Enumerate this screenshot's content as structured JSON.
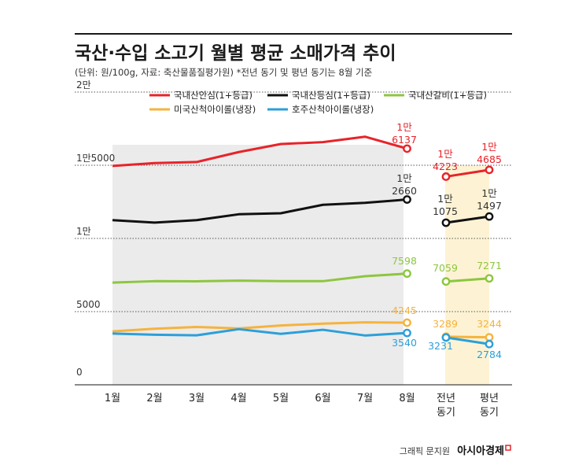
{
  "header": {
    "title": "국산·수입 소고기 월별 평균 소매가격 추이",
    "subtitle": "(단위: 원/100g, 자료: 축산물품질평가원) *전년 동기 및 평년 동기는 8월 기준"
  },
  "footer": {
    "credit": "그래픽 문지원",
    "brand": "아시아경제"
  },
  "chart_data": {
    "type": "line",
    "title": "국산·수입 소고기 월별 평균 소매가격 추이",
    "ylim": [
      0,
      20000
    ],
    "yticks": [
      {
        "value": 0,
        "label": "0"
      },
      {
        "value": 5000,
        "label": "5000"
      },
      {
        "value": 10000,
        "label": "1만"
      },
      {
        "value": 15000,
        "label": "1만5000"
      },
      {
        "value": 20000,
        "label": "2만"
      }
    ],
    "categories": [
      "1월",
      "2월",
      "3월",
      "4월",
      "5월",
      "6월",
      "7월",
      "8월"
    ],
    "compare_categories": [
      [
        "전년",
        "동기"
      ],
      [
        "평년",
        "동기"
      ]
    ],
    "series": [
      {
        "name": "국내산안심(1+등급)",
        "color": "#e8232a",
        "values": [
          14950,
          15150,
          15220,
          15900,
          16450,
          16580,
          16950,
          16137
        ],
        "compare": [
          14223,
          14685
        ],
        "end_label": [
          "1만",
          "6137"
        ],
        "compare_labels": [
          [
            "1만",
            "4223"
          ],
          [
            "1만",
            "4685"
          ]
        ]
      },
      {
        "name": "국내산등심(1+등급)",
        "color": "#111111",
        "values": [
          11250,
          11080,
          11250,
          11650,
          11720,
          12300,
          12430,
          12660
        ],
        "compare": [
          11075,
          11497
        ],
        "end_label": [
          "1만",
          "2660"
        ],
        "compare_labels": [
          [
            "1만",
            "1075"
          ],
          [
            "1만",
            "1497"
          ]
        ]
      },
      {
        "name": "국내산갈비(1+등급)",
        "color": "#8dc63f",
        "values": [
          6980,
          7080,
          7070,
          7120,
          7080,
          7080,
          7420,
          7598
        ],
        "compare": [
          7059,
          7271
        ],
        "end_label": [
          "7598"
        ],
        "compare_labels": [
          [
            "7059"
          ],
          [
            "7271"
          ]
        ]
      },
      {
        "name": "미국산척아이롤(냉장)",
        "color": "#f5b33e",
        "values": [
          3650,
          3830,
          3950,
          3850,
          4050,
          4180,
          4270,
          4245
        ],
        "compare": [
          3289,
          3244
        ],
        "end_label": [
          "4245"
        ],
        "compare_labels": [
          [
            "3289"
          ],
          [
            "3244"
          ]
        ]
      },
      {
        "name": "호주산척아이롤(냉장)",
        "color": "#2c9fd9",
        "values": [
          3500,
          3420,
          3380,
          3800,
          3480,
          3760,
          3370,
          3540
        ],
        "compare": [
          3231,
          2784
        ],
        "end_label": [
          "3540"
        ],
        "compare_labels": [
          [
            "3231"
          ],
          [
            "2784"
          ]
        ]
      }
    ],
    "grid": true,
    "legend": "top"
  }
}
